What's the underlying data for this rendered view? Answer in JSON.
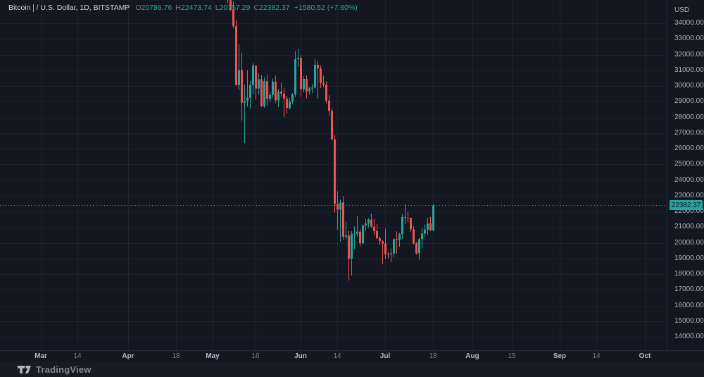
{
  "legend": {
    "symbol": "Bitcoin",
    "description": "/ U.S. Dollar, 1D, BITSTAMP",
    "ohlc": [
      {
        "label": "O",
        "value": "20786.76"
      },
      {
        "label": "H",
        "value": "22473.74"
      },
      {
        "label": "L",
        "value": "20757.29"
      },
      {
        "label": "C",
        "value": "22382.37"
      }
    ],
    "change": "+1580.52 (+7.60%)"
  },
  "price_axis": {
    "unit": "USD",
    "ticks": [
      "34000.00",
      "33000.00",
      "32000.00",
      "31000.00",
      "30000.00",
      "29000.00",
      "28000.00",
      "27000.00",
      "26000.00",
      "25000.00",
      "24000.00",
      "23000.00",
      "22000.00",
      "21000.00",
      "20000.00",
      "19000.00",
      "18000.00",
      "17000.00",
      "16000.00",
      "15000.00",
      "14000.00"
    ],
    "current": {
      "value": 22382.37,
      "label": "22382.37"
    }
  },
  "time_axis": {
    "ticks": [
      {
        "label": "Mar",
        "date": "Mar 1",
        "major": true
      },
      {
        "label": "14",
        "date": "Mar 14",
        "major": false
      },
      {
        "label": "Apr",
        "date": "Apr 1",
        "major": true
      },
      {
        "label": "18",
        "date": "Apr 18",
        "major": false
      },
      {
        "label": "May",
        "date": "May 1",
        "major": true
      },
      {
        "label": "16",
        "date": "May 16",
        "major": false
      },
      {
        "label": "Jun",
        "date": "Jun 1",
        "major": true
      },
      {
        "label": "14",
        "date": "Jun 14",
        "major": false
      },
      {
        "label": "Jul",
        "date": "Jul 1",
        "major": true
      },
      {
        "label": "18",
        "date": "Jul 18",
        "major": false
      },
      {
        "label": "Aug",
        "date": "Aug 1",
        "major": true
      },
      {
        "label": "15",
        "date": "Aug 15",
        "major": false
      },
      {
        "label": "Sep",
        "date": "Sep 1",
        "major": true
      },
      {
        "label": "14",
        "date": "Sep 14",
        "major": false
      },
      {
        "label": "Oct",
        "date": "Oct 1",
        "major": true
      }
    ]
  },
  "attribution": {
    "text": "TradingView",
    "logo_icon": "tradingview-logo"
  },
  "colors": {
    "background": "#131722",
    "up": "#26a69a",
    "down": "#ef5350",
    "grid": "rgba(170,178,197,0.07)",
    "axis_text": "#b2b5be",
    "muted_text": "#787b86",
    "legend_text": "#d6d9e0",
    "ohlc_value": "#2aa797",
    "price_label_bg": "#26a69a",
    "price_label_text": "#0b1220"
  },
  "chart_data": {
    "type": "candlestick",
    "title": "Bitcoin / U.S. Dollar",
    "exchange": "BITSTAMP",
    "interval": "1D",
    "unit": "USD",
    "ylim": [
      13100,
      35480
    ],
    "y_tick_step": 1000,
    "grid": true,
    "price_line": {
      "value": 22382.37,
      "style": "dotted"
    },
    "last_bar": {
      "open": 20786.76,
      "high": 22473.74,
      "low": 20757.29,
      "close": 22382.37,
      "change": "+1580.52",
      "change_pct": "+7.60%"
    },
    "columns": [
      "date",
      "open",
      "high",
      "low",
      "close"
    ],
    "candles": [
      [
        "May 5",
        39695,
        39845,
        35554,
        36551
      ],
      [
        "May 6",
        36551,
        36675,
        35258,
        35472
      ],
      [
        "May 7",
        35472,
        35965,
        34785,
        34864
      ],
      [
        "May 8",
        34864,
        35400,
        33704,
        33811
      ],
      [
        "May 9",
        33811,
        34222,
        30033,
        30057
      ],
      [
        "May 10",
        30057,
        32658,
        29735,
        31017
      ],
      [
        "May 11",
        31017,
        32120,
        27785,
        28936
      ],
      [
        "May 12",
        28936,
        30093,
        26350,
        29047
      ],
      [
        "May 13",
        29047,
        31010,
        28690,
        29249
      ],
      [
        "May 14",
        29249,
        30343,
        28561,
        30056
      ],
      [
        "May 15",
        30056,
        31460,
        29480,
        31305
      ],
      [
        "May 16",
        31305,
        31308,
        29100,
        29842
      ],
      [
        "May 17",
        29842,
        30788,
        29451,
        30425
      ],
      [
        "May 18",
        30425,
        30701,
        28654,
        28715
      ],
      [
        "May 19",
        28715,
        30545,
        28600,
        30303
      ],
      [
        "May 20",
        30303,
        30745,
        28730,
        29178
      ],
      [
        "May 21",
        29178,
        29625,
        28947,
        29435
      ],
      [
        "May 22",
        29435,
        30487,
        29255,
        30269
      ],
      [
        "May 23",
        30269,
        30656,
        28899,
        29092
      ],
      [
        "May 24",
        29092,
        29810,
        28660,
        29643
      ],
      [
        "May 25",
        29643,
        30200,
        29291,
        29512
      ],
      [
        "May 26",
        29512,
        29850,
        28018,
        29193
      ],
      [
        "May 27",
        29193,
        29370,
        28261,
        28600
      ],
      [
        "May 28",
        28600,
        29250,
        28500,
        29016
      ],
      [
        "May 29",
        29016,
        29540,
        28843,
        29461
      ],
      [
        "May 30",
        29461,
        32222,
        29299,
        31711
      ],
      [
        "May 31",
        31711,
        32376,
        31201,
        31779
      ],
      [
        "Jun 1",
        31779,
        31970,
        29310,
        29793
      ],
      [
        "Jun 2",
        29793,
        30630,
        29595,
        30446
      ],
      [
        "Jun 3",
        30446,
        30676,
        29225,
        29656
      ],
      [
        "Jun 4",
        29656,
        29945,
        29455,
        29836
      ],
      [
        "Jun 5",
        29836,
        30150,
        29550,
        29894
      ],
      [
        "Jun 6",
        29894,
        31730,
        29870,
        31347
      ],
      [
        "Jun 7",
        31347,
        31550,
        29212,
        31120
      ],
      [
        "Jun 8",
        31120,
        31290,
        29870,
        30185
      ],
      [
        "Jun 9",
        30185,
        30650,
        29930,
        30078
      ],
      [
        "Jun 10",
        30078,
        30315,
        28900,
        29070
      ],
      [
        "Jun 11",
        29070,
        29400,
        28090,
        28408
      ],
      [
        "Jun 12",
        28408,
        28550,
        26570,
        26575
      ],
      [
        "Jun 13",
        26575,
        26890,
        21926,
        22478
      ],
      [
        "Jun 14",
        22478,
        23283,
        20818,
        22118
      ],
      [
        "Jun 15",
        22118,
        22750,
        20080,
        22566
      ],
      [
        "Jun 16",
        22566,
        22970,
        20182,
        20385
      ],
      [
        "Jun 17",
        20385,
        21343,
        20225,
        20462
      ],
      [
        "Jun 18",
        20462,
        20752,
        17585,
        18970
      ],
      [
        "Jun 19",
        18970,
        20742,
        17913,
        20566
      ],
      [
        "Jun 20",
        20566,
        21050,
        19595,
        20573
      ],
      [
        "Jun 21",
        20573,
        21680,
        20375,
        20712
      ],
      [
        "Jun 22",
        20712,
        20850,
        19785,
        19970
      ],
      [
        "Jun 23",
        19970,
        21170,
        19900,
        21110
      ],
      [
        "Jun 24",
        21110,
        21522,
        20738,
        21234
      ],
      [
        "Jun 25",
        21234,
        21587,
        20942,
        21482
      ],
      [
        "Jun 26",
        21482,
        21870,
        20918,
        21030
      ],
      [
        "Jun 27",
        21030,
        21515,
        20512,
        20738
      ],
      [
        "Jun 28",
        20738,
        21190,
        20225,
        20285
      ],
      [
        "Jun 29",
        20285,
        20402,
        19860,
        20110
      ],
      [
        "Jun 30",
        20110,
        20162,
        18632,
        19945
      ],
      [
        "Jul 1",
        19945,
        20912,
        18977,
        19282
      ],
      [
        "Jul 2",
        19282,
        19422,
        18987,
        19255
      ],
      [
        "Jul 3",
        19255,
        19635,
        18783,
        19318
      ],
      [
        "Jul 4",
        19318,
        20315,
        19065,
        20240
      ],
      [
        "Jul 5",
        20240,
        20732,
        19307,
        20178
      ],
      [
        "Jul 6",
        20178,
        20633,
        19755,
        20550
      ],
      [
        "Jul 7",
        20550,
        21842,
        20247,
        21640
      ],
      [
        "Jul 8",
        21640,
        22452,
        21190,
        21595
      ],
      [
        "Jul 9",
        21595,
        21965,
        21324,
        21593
      ],
      [
        "Jul 10",
        21593,
        21597,
        20660,
        20862
      ],
      [
        "Jul 11",
        20862,
        21058,
        19886,
        19965
      ],
      [
        "Jul 12",
        19965,
        20048,
        19242,
        19328
      ],
      [
        "Jul 13",
        19328,
        20335,
        18912,
        20230
      ],
      [
        "Jul 14",
        20230,
        20925,
        19658,
        20592
      ],
      [
        "Jul 15",
        20592,
        21153,
        20388,
        20838
      ],
      [
        "Jul 16",
        20838,
        21590,
        20488,
        21228
      ],
      [
        "Jul 17",
        21228,
        21652,
        20760,
        20787
      ],
      [
        "Jul 18",
        20786.76,
        22473.74,
        20757.29,
        22382.37
      ]
    ]
  }
}
